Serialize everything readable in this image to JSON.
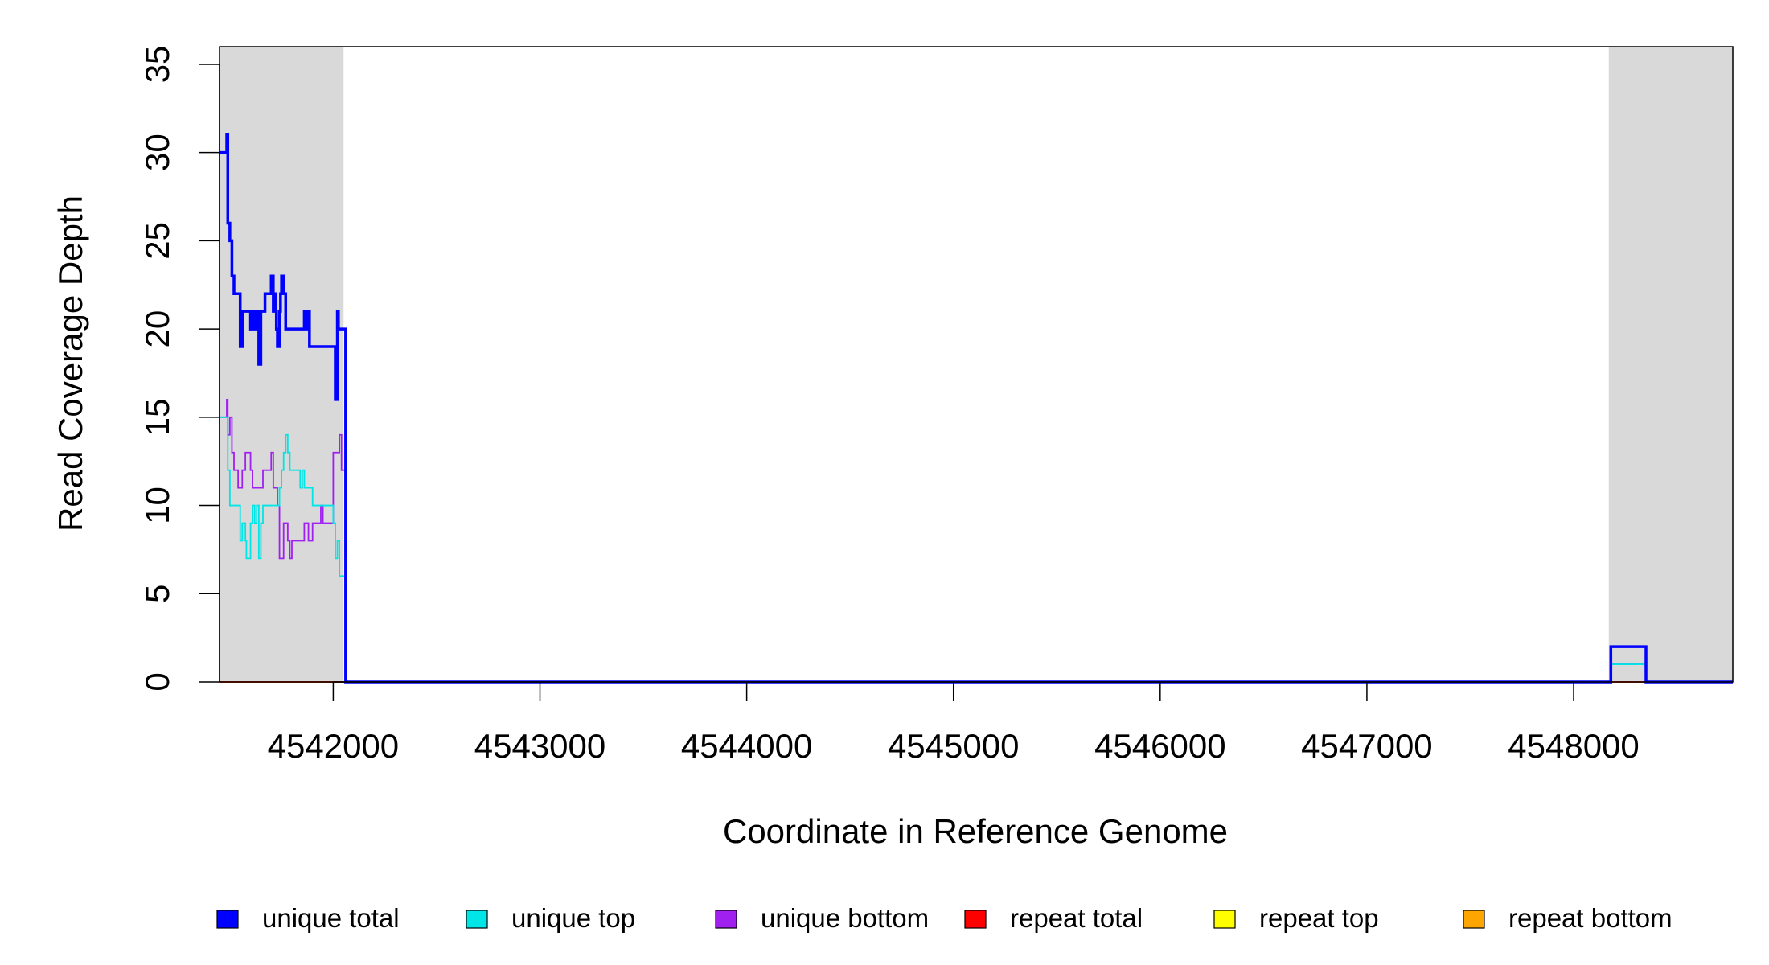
{
  "chart_data": {
    "type": "line",
    "xlabel": "Coordinate in Reference Genome",
    "ylabel": "Read Coverage Depth",
    "xlim": [
      4541450,
      4548770
    ],
    "ylim": [
      0,
      36
    ],
    "x_ticks": [
      4542000,
      4543000,
      4544000,
      4545000,
      4546000,
      4547000,
      4548000
    ],
    "y_ticks": [
      0,
      5,
      10,
      15,
      20,
      25,
      30,
      35
    ],
    "shaded_regions": [
      [
        4541450,
        4542050
      ],
      [
        4548170,
        4548770
      ]
    ],
    "legend": {
      "placement": "bottom",
      "entries": [
        {
          "name": "unique total",
          "color": "#0000ff"
        },
        {
          "name": "unique top",
          "color": "#00e5e5"
        },
        {
          "name": "unique bottom",
          "color": "#a020f0"
        },
        {
          "name": "repeat total",
          "color": "#ff0000"
        },
        {
          "name": "repeat top",
          "color": "#ffff00"
        },
        {
          "name": "repeat bottom",
          "color": "#ffa500"
        }
      ]
    },
    "series": [
      {
        "name": "unique total",
        "color": "#0000ff",
        "x": [
          4541450,
          4541480,
          4541485,
          4541490,
          4541500,
          4541510,
          4541520,
          4541550,
          4541560,
          4541575,
          4541600,
          4541610,
          4541620,
          4541630,
          4541640,
          4541650,
          4541660,
          4541670,
          4541680,
          4541700,
          4541710,
          4541715,
          4541720,
          4541725,
          4541730,
          4541740,
          4541745,
          4541750,
          4541760,
          4541770,
          4541780,
          4541790,
          4541800,
          4541860,
          4541865,
          4541870,
          4541875,
          4541880,
          4541885,
          4541890,
          4541900,
          4542000,
          4542010,
          4542020,
          4542025,
          4542050,
          4542060,
          4548180,
          4548350,
          4548770
        ],
        "y": [
          30,
          30,
          31,
          26,
          25,
          23,
          22,
          19,
          21,
          21,
          20,
          21,
          20,
          21,
          18,
          21,
          21,
          22,
          22,
          23,
          21,
          22,
          21,
          20,
          19,
          21,
          22,
          23,
          22,
          20,
          20,
          20,
          20,
          21,
          20,
          21,
          20,
          21,
          19,
          19,
          19,
          19,
          16,
          21,
          20,
          20,
          0,
          2,
          0,
          0
        ]
      },
      {
        "name": "unique top",
        "color": "#00e5e5",
        "x": [
          4541450,
          4541480,
          4541490,
          4541500,
          4541550,
          4541560,
          4541575,
          4541580,
          4541600,
          4541610,
          4541620,
          4541630,
          4541640,
          4541650,
          4541660,
          4541670,
          4541680,
          4541700,
          4541740,
          4541750,
          4541760,
          4541770,
          4541780,
          4541790,
          4541800,
          4541810,
          4541840,
          4541850,
          4541860,
          4541870,
          4541880,
          4541890,
          4541900,
          4541950,
          4542000,
          4542010,
          4542020,
          4542030,
          4542050,
          4542060,
          4548180,
          4548350,
          4548770
        ],
        "y": [
          15,
          15,
          12,
          10,
          8,
          9,
          8,
          7,
          9,
          10,
          9,
          10,
          7,
          9,
          10,
          10,
          10,
          10,
          11,
          12,
          13,
          14,
          13,
          12,
          12,
          12,
          11,
          12,
          11,
          11,
          11,
          11,
          10,
          10,
          9,
          7,
          8,
          6,
          6,
          0,
          1,
          0,
          0
        ]
      },
      {
        "name": "unique bottom",
        "color": "#a020f0",
        "x": [
          4541450,
          4541480,
          4541485,
          4541490,
          4541500,
          4541510,
          4541520,
          4541540,
          4541560,
          4541575,
          4541600,
          4541610,
          4541620,
          4541660,
          4541700,
          4541710,
          4541730,
          4541740,
          4541760,
          4541780,
          4541790,
          4541800,
          4541820,
          4541850,
          4541860,
          4541880,
          4541900,
          4541940,
          4541950,
          4541990,
          4542000,
          4542030,
          4542040,
          4542050,
          4542060,
          4548180,
          4548350,
          4548770
        ],
        "y": [
          15,
          15,
          16,
          14,
          15,
          13,
          12,
          11,
          12,
          13,
          12,
          11,
          11,
          12,
          13,
          11,
          10,
          7,
          9,
          8,
          7,
          8,
          8,
          8,
          9,
          8,
          9,
          10,
          9,
          9,
          13,
          14,
          12,
          12,
          0,
          1,
          0,
          0
        ]
      },
      {
        "name": "repeat total",
        "color": "#ff0000",
        "x": [
          4541450,
          4548770
        ],
        "y": [
          0,
          0
        ]
      },
      {
        "name": "repeat top",
        "color": "#ffff00",
        "x": [
          4541450,
          4548770
        ],
        "y": [
          0,
          0
        ]
      },
      {
        "name": "repeat bottom",
        "color": "#ffa500",
        "x": [
          4541450,
          4548770
        ],
        "y": [
          0,
          0
        ]
      }
    ]
  }
}
